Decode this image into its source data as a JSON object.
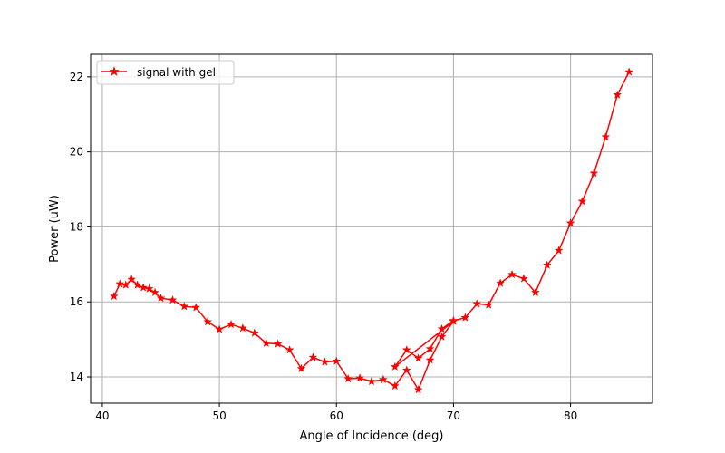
{
  "chart_data": {
    "type": "line",
    "xlabel": "Angle of Incidence (deg)",
    "ylabel": "Power (uW)",
    "xlim": [
      39,
      87
    ],
    "ylim": [
      13.3,
      22.6
    ],
    "xticks": [
      40,
      50,
      60,
      70,
      80
    ],
    "yticks": [
      14,
      16,
      18,
      20,
      22
    ],
    "grid": true,
    "legend_position": "top-left",
    "marker": "star",
    "series": [
      {
        "name": "signal with gel",
        "color": "#ff0000",
        "points": [
          [
            41,
            16.15
          ],
          [
            41.5,
            16.48
          ],
          [
            42,
            16.45
          ],
          [
            42.5,
            16.6
          ],
          [
            43,
            16.45
          ],
          [
            43.5,
            16.38
          ],
          [
            44,
            16.35
          ],
          [
            44.5,
            16.25
          ],
          [
            45,
            16.1
          ],
          [
            46,
            16.05
          ],
          [
            47,
            15.88
          ],
          [
            48,
            15.85
          ],
          [
            49,
            15.47
          ],
          [
            50,
            15.27
          ],
          [
            51,
            15.4
          ],
          [
            52,
            15.3
          ],
          [
            53,
            15.17
          ],
          [
            54,
            14.9
          ],
          [
            55,
            14.88
          ],
          [
            56,
            14.72
          ],
          [
            57,
            14.22
          ],
          [
            58,
            14.52
          ],
          [
            59,
            14.4
          ],
          [
            60,
            14.42
          ],
          [
            61,
            13.95
          ],
          [
            62,
            13.97
          ],
          [
            63,
            13.88
          ],
          [
            64,
            13.93
          ],
          [
            65,
            13.76
          ],
          [
            66,
            14.18
          ],
          [
            67,
            13.66
          ],
          [
            68,
            14.45
          ],
          [
            69,
            15.07
          ],
          [
            70,
            15.48
          ],
          [
            65,
            14.27
          ],
          [
            66,
            14.72
          ],
          [
            67,
            14.5
          ],
          [
            68,
            14.75
          ],
          [
            69,
            15.28
          ],
          [
            70,
            15.5
          ],
          [
            71,
            15.58
          ],
          [
            72,
            15.95
          ],
          [
            73,
            15.92
          ],
          [
            74,
            16.5
          ],
          [
            75,
            16.73
          ],
          [
            76,
            16.62
          ],
          [
            77,
            16.25
          ],
          [
            78,
            16.98
          ],
          [
            79,
            17.37
          ],
          [
            80,
            18.1
          ],
          [
            81,
            18.68
          ],
          [
            82,
            19.43
          ],
          [
            83,
            20.4
          ],
          [
            84,
            21.52
          ],
          [
            85,
            22.13
          ]
        ]
      }
    ]
  }
}
